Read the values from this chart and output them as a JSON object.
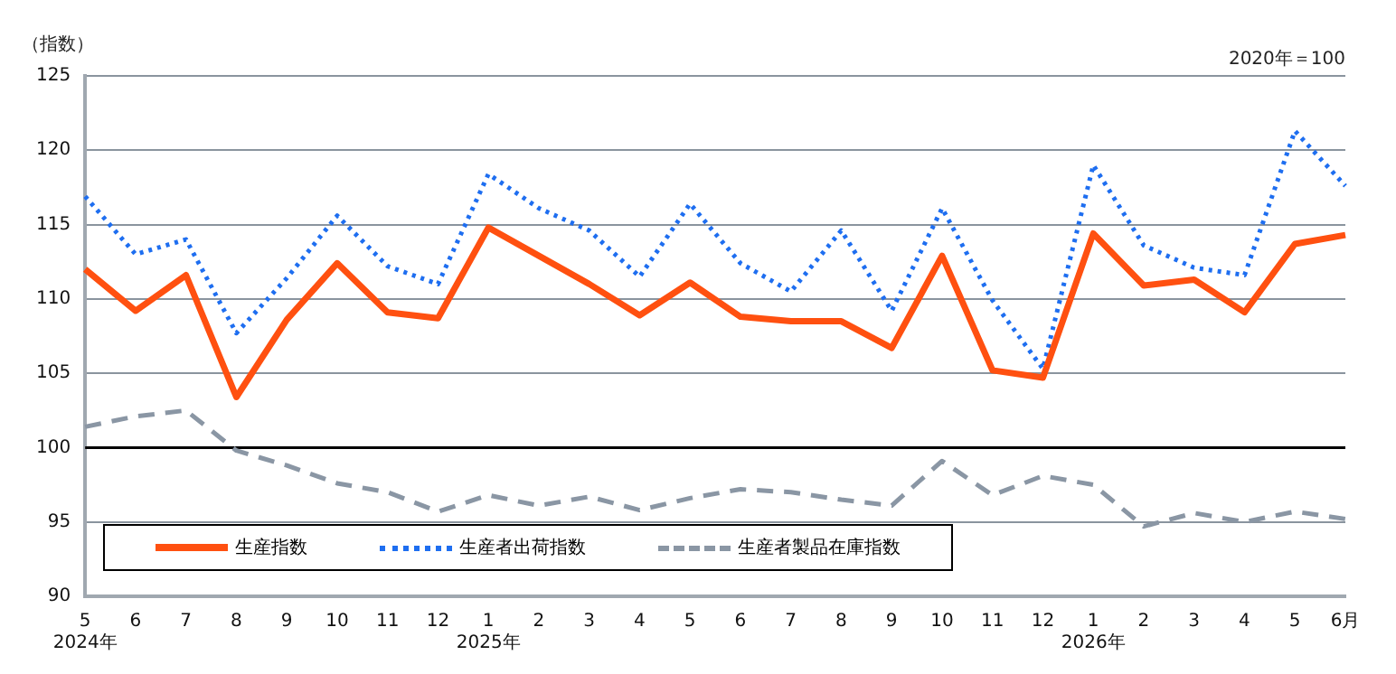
{
  "chart_data": {
    "type": "line",
    "ylabel": "（指数）",
    "annotations": [
      "2020年＝100"
    ],
    "categories": [
      "5\n2024年",
      "6",
      "7",
      "8",
      "9",
      "10",
      "11",
      "12",
      "1\n2025年",
      "2",
      "3",
      "4",
      "5",
      "6",
      "7",
      "8",
      "9",
      "10",
      "11",
      "12",
      "1\n2026年",
      "2",
      "3",
      "4",
      "5",
      "6月"
    ],
    "series": [
      {
        "name": "生産指数",
        "color": "#ff5010",
        "line_style": "solid",
        "values": [
          112.0,
          109.2,
          111.6,
          103.4,
          108.6,
          112.4,
          109.1,
          108.7,
          114.8,
          112.9,
          111.0,
          108.9,
          111.1,
          108.8,
          108.5,
          108.5,
          106.7,
          112.9,
          105.2,
          104.7,
          114.4,
          110.9,
          111.3,
          109.1,
          113.7,
          114.3
        ]
      },
      {
        "name": "生産者出荷指数",
        "color": "#1e6ef0",
        "line_style": "dotted",
        "values": [
          116.9,
          113.0,
          114.0,
          107.7,
          111.4,
          115.6,
          112.2,
          111.0,
          118.4,
          116.1,
          114.6,
          111.5,
          116.4,
          112.4,
          110.5,
          114.6,
          109.2,
          116.1,
          109.9,
          105.3,
          119.0,
          113.6,
          112.1,
          111.6,
          121.3,
          117.6
        ]
      },
      {
        "name": "生産者製品在庫指数",
        "color": "#8a96a4",
        "line_style": "dashed",
        "values": [
          101.4,
          102.1,
          102.5,
          99.8,
          98.8,
          97.6,
          97.0,
          95.7,
          96.8,
          96.1,
          96.7,
          95.8,
          96.6,
          97.2,
          97.0,
          96.5,
          96.1,
          99.1,
          96.8,
          98.1,
          97.5,
          94.7,
          95.6,
          95.0,
          95.7,
          95.2
        ]
      }
    ],
    "ylim": [
      90,
      125
    ],
    "yticks": [
      90,
      95,
      100,
      105,
      110,
      115,
      120,
      125
    ],
    "grid": "y",
    "legend": "bottom left",
    "marker": "none",
    "ref_lines": [
      {
        "axis": "y",
        "value": 100,
        "color": "#000000"
      }
    ]
  }
}
